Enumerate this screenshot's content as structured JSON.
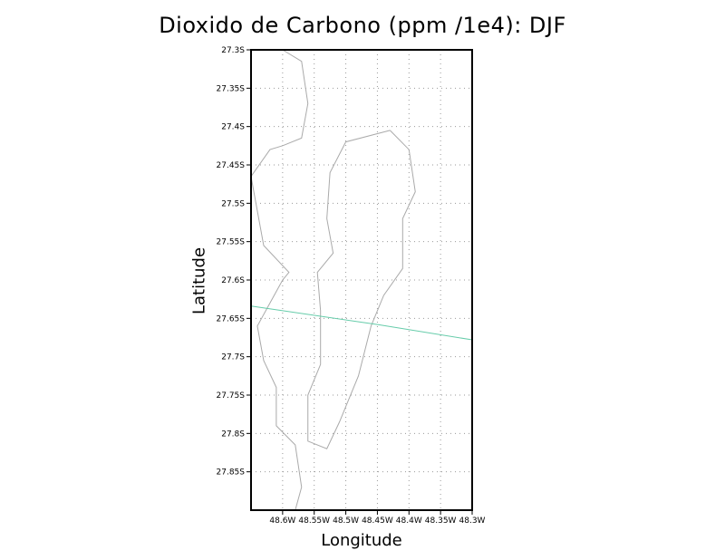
{
  "chart_data": {
    "type": "map",
    "title": "Dioxido de Carbono (ppm /1e4): DJF",
    "xlabel": "Longitude",
    "ylabel": "Latitude",
    "xlim": [
      -48.65,
      -48.3
    ],
    "ylim": [
      -27.9,
      -27.3
    ],
    "grid": true,
    "x_ticks": [
      {
        "value": -48.6,
        "label": "48.6W"
      },
      {
        "value": -48.55,
        "label": "48.55W"
      },
      {
        "value": -48.5,
        "label": "48.5W"
      },
      {
        "value": -48.45,
        "label": "48.45W"
      },
      {
        "value": -48.4,
        "label": "48.4W"
      },
      {
        "value": -48.35,
        "label": "48.35W"
      },
      {
        "value": -48.3,
        "label": "48.3W"
      }
    ],
    "y_ticks": [
      {
        "value": -27.3,
        "label": "27.3S"
      },
      {
        "value": -27.35,
        "label": "27.35S"
      },
      {
        "value": -27.4,
        "label": "27.4S"
      },
      {
        "value": -27.45,
        "label": "27.45S"
      },
      {
        "value": -27.5,
        "label": "27.5S"
      },
      {
        "value": -27.55,
        "label": "27.55S"
      },
      {
        "value": -27.6,
        "label": "27.6S"
      },
      {
        "value": -27.65,
        "label": "27.65S"
      },
      {
        "value": -27.7,
        "label": "27.7S"
      },
      {
        "value": -27.75,
        "label": "27.75S"
      },
      {
        "value": -27.8,
        "label": "27.8S"
      },
      {
        "value": -27.85,
        "label": "27.85S"
      }
    ],
    "coastlines": [
      {
        "name": "mainland-coast",
        "color": "#aaaaaa",
        "points": [
          [
            -48.6,
            -27.3
          ],
          [
            -48.57,
            -27.315
          ],
          [
            -48.56,
            -27.37
          ],
          [
            -48.57,
            -27.415
          ],
          [
            -48.6,
            -27.425
          ],
          [
            -48.62,
            -27.43
          ],
          [
            -48.65,
            -27.465
          ],
          [
            -48.63,
            -27.555
          ],
          [
            -48.59,
            -27.59
          ],
          [
            -48.6,
            -27.6
          ],
          [
            -48.62,
            -27.63
          ],
          [
            -48.64,
            -27.66
          ],
          [
            -48.63,
            -27.705
          ],
          [
            -48.61,
            -27.74
          ],
          [
            -48.61,
            -27.79
          ],
          [
            -48.58,
            -27.815
          ],
          [
            -48.57,
            -27.87
          ],
          [
            -48.58,
            -27.9
          ]
        ]
      },
      {
        "name": "island-coast",
        "color": "#aaaaaa",
        "points": [
          [
            -48.43,
            -27.405
          ],
          [
            -48.4,
            -27.43
          ],
          [
            -48.39,
            -27.485
          ],
          [
            -48.41,
            -27.52
          ],
          [
            -48.41,
            -27.585
          ],
          [
            -48.44,
            -27.62
          ],
          [
            -48.46,
            -27.66
          ],
          [
            -48.48,
            -27.725
          ],
          [
            -48.51,
            -27.785
          ],
          [
            -48.53,
            -27.82
          ],
          [
            -48.56,
            -27.81
          ],
          [
            -48.56,
            -27.75
          ],
          [
            -48.54,
            -27.71
          ],
          [
            -48.54,
            -27.64
          ],
          [
            -48.545,
            -27.59
          ],
          [
            -48.52,
            -27.565
          ],
          [
            -48.53,
            -27.52
          ],
          [
            -48.525,
            -27.46
          ],
          [
            -48.5,
            -27.42
          ],
          [
            -48.43,
            -27.405
          ]
        ]
      }
    ],
    "series": [
      {
        "color": "#66ccaa",
        "points": [
          [
            -48.65,
            -27.634
          ],
          [
            -48.45,
            -27.658
          ],
          [
            -48.3,
            -27.678
          ]
        ]
      }
    ]
  }
}
